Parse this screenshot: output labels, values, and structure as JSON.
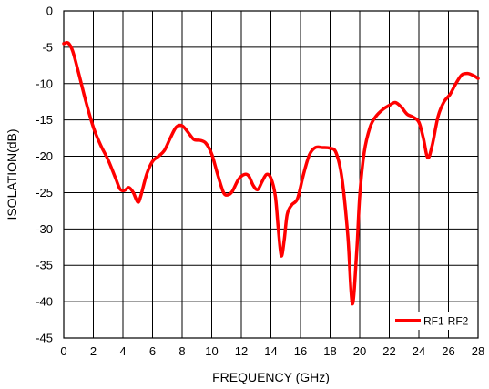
{
  "chart_data": {
    "type": "line",
    "title": "",
    "xlabel": "FREQUENCY (GHz)",
    "ylabel": "ISOLATION(dB)",
    "xlim": [
      0,
      28
    ],
    "ylim": [
      -45,
      0
    ],
    "x_ticks": [
      "0",
      "2",
      "4",
      "6",
      "8",
      "10",
      "12",
      "14",
      "16",
      "18",
      "20",
      "22",
      "24",
      "26",
      "28"
    ],
    "y_ticks": [
      "0",
      "-5",
      "-10",
      "-15",
      "-20",
      "-25",
      "-30",
      "-35",
      "-40",
      "-45"
    ],
    "grid": true,
    "legend_position": "bottom-right",
    "series": [
      {
        "name": "RF1-RF2",
        "color": "#ff0000",
        "points": [
          [
            0.0,
            -4.5
          ],
          [
            0.3,
            -4.4
          ],
          [
            0.6,
            -5.5
          ],
          [
            1.0,
            -8.5
          ],
          [
            1.5,
            -12.5
          ],
          [
            2.0,
            -16.0
          ],
          [
            2.5,
            -18.5
          ],
          [
            3.0,
            -20.5
          ],
          [
            3.5,
            -23.0
          ],
          [
            3.8,
            -24.5
          ],
          [
            4.1,
            -24.7
          ],
          [
            4.4,
            -24.3
          ],
          [
            4.7,
            -25.0
          ],
          [
            5.0,
            -26.3
          ],
          [
            5.2,
            -25.5
          ],
          [
            5.6,
            -22.5
          ],
          [
            6.0,
            -20.7
          ],
          [
            6.4,
            -20.0
          ],
          [
            6.8,
            -19.2
          ],
          [
            7.2,
            -17.5
          ],
          [
            7.6,
            -16.0
          ],
          [
            8.0,
            -15.8
          ],
          [
            8.4,
            -16.7
          ],
          [
            8.8,
            -17.7
          ],
          [
            9.2,
            -17.8
          ],
          [
            9.6,
            -18.2
          ],
          [
            10.0,
            -19.7
          ],
          [
            10.4,
            -22.5
          ],
          [
            10.8,
            -25.0
          ],
          [
            11.1,
            -25.3
          ],
          [
            11.4,
            -24.8
          ],
          [
            11.8,
            -23.2
          ],
          [
            12.2,
            -22.5
          ],
          [
            12.5,
            -22.7
          ],
          [
            12.8,
            -24.0
          ],
          [
            13.1,
            -24.6
          ],
          [
            13.4,
            -23.5
          ],
          [
            13.7,
            -22.5
          ],
          [
            14.0,
            -23.0
          ],
          [
            14.3,
            -25.5
          ],
          [
            14.5,
            -30.0
          ],
          [
            14.7,
            -33.7
          ],
          [
            14.9,
            -31.5
          ],
          [
            15.1,
            -28.0
          ],
          [
            15.4,
            -26.7
          ],
          [
            15.8,
            -25.8
          ],
          [
            16.2,
            -22.5
          ],
          [
            16.6,
            -19.8
          ],
          [
            17.0,
            -18.8
          ],
          [
            17.5,
            -18.8
          ],
          [
            18.0,
            -18.9
          ],
          [
            18.4,
            -19.5
          ],
          [
            18.8,
            -23.0
          ],
          [
            19.2,
            -31.0
          ],
          [
            19.5,
            -40.3
          ],
          [
            19.8,
            -33.0
          ],
          [
            20.0,
            -25.5
          ],
          [
            20.3,
            -19.5
          ],
          [
            20.7,
            -16.0
          ],
          [
            21.1,
            -14.5
          ],
          [
            21.6,
            -13.5
          ],
          [
            22.0,
            -13.0
          ],
          [
            22.4,
            -12.6
          ],
          [
            22.8,
            -13.2
          ],
          [
            23.2,
            -14.2
          ],
          [
            23.6,
            -14.6
          ],
          [
            24.0,
            -15.3
          ],
          [
            24.3,
            -17.5
          ],
          [
            24.6,
            -20.2
          ],
          [
            24.9,
            -18.5
          ],
          [
            25.3,
            -14.5
          ],
          [
            25.7,
            -12.5
          ],
          [
            26.1,
            -11.5
          ],
          [
            26.5,
            -10.0
          ],
          [
            26.9,
            -8.8
          ],
          [
            27.3,
            -8.6
          ],
          [
            27.7,
            -8.9
          ],
          [
            28.0,
            -9.3
          ]
        ]
      }
    ]
  }
}
